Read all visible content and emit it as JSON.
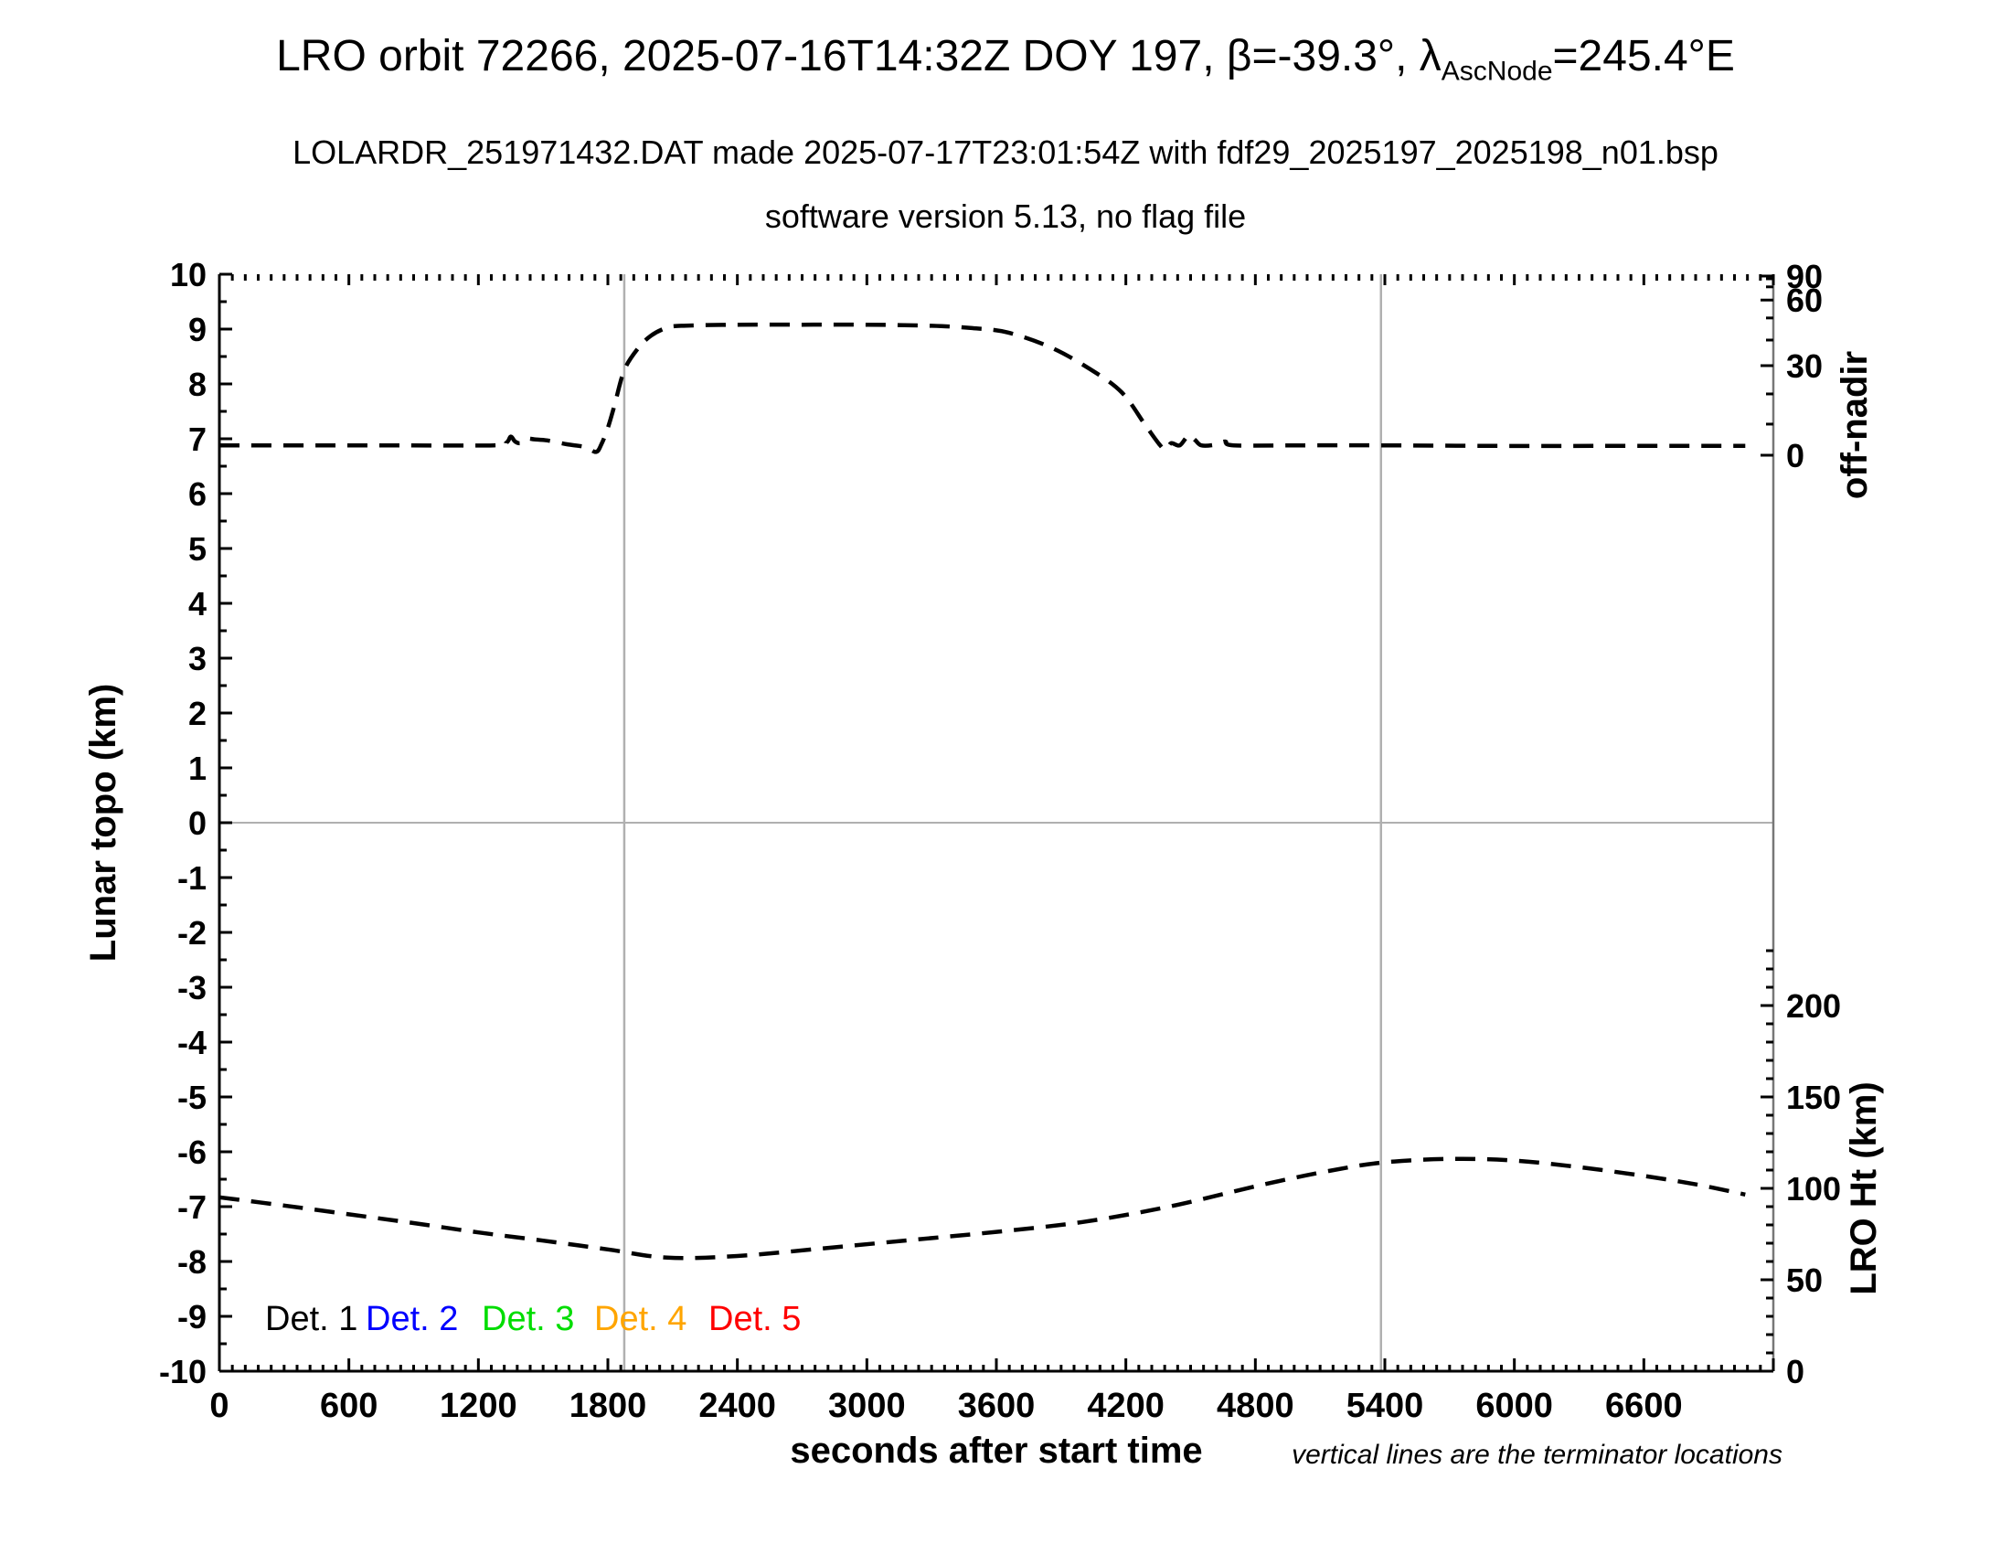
{
  "header": {
    "title_prefix": "LRO orbit 72266, 2025-07-16T14:32Z DOY 197, β=-39.3°, λ",
    "title_subscript": "AscNode",
    "title_suffix": "=245.4°E",
    "subtitle": "LOLARDR_251971432.DAT made 2025-07-17T23:01:54Z with fdf29_2025197_2025198_n01.bsp",
    "software_line": "software version 5.13, no flag file"
  },
  "footnote": "vertical lines are the terminator locations",
  "legend": {
    "items": [
      {
        "label": "Det. 1",
        "color": "#000000"
      },
      {
        "label": "Det. 2",
        "color": "#0000ff"
      },
      {
        "label": "Det. 3",
        "color": "#00dd00"
      },
      {
        "label": "Det. 4",
        "color": "#ffa500"
      },
      {
        "label": "Det. 5",
        "color": "#ff0000"
      }
    ]
  },
  "colors": {
    "curve": "#000000",
    "reference_gray": "#b0b0b0",
    "axis_black": "#000000",
    "axis_right_gray": "#777777"
  },
  "chart_data": {
    "type": "line",
    "title": "LRO orbit 72266, 2025-07-16T14:32Z DOY 197, beta=-39.3 deg, lambda_AscNode=245.4E",
    "x_axis": {
      "label": "seconds after start time",
      "min": 0,
      "max": 7200,
      "major_tick": 600,
      "minor_tick": 60,
      "last_labeled_tick": 6600
    },
    "y_left": {
      "label": "Lunar topo (km)",
      "min": -10,
      "max": 10,
      "major_tick": 1,
      "minor_tick": 0.5
    },
    "y_right_top": {
      "label": "off-nadir",
      "labeled_ticks": [
        0,
        30,
        60,
        90
      ],
      "minor_tick_deg": 10,
      "scale": "sine",
      "zero_at_left_units": 6.7,
      "amplitude_left_units": 3.267
    },
    "y_right_bottom": {
      "label": "LRO Ht (km)",
      "labeled_ticks": [
        0,
        50,
        100,
        150,
        200
      ],
      "minor_tick_km": 10,
      "max_tick_km": 230,
      "km_per_left_unit": 30,
      "zero_at_left_units": -10
    },
    "terminator_lines_s": [
      1876,
      5382
    ],
    "zero_reference_line_left_units": 0,
    "grid": "off",
    "legend_position": "inside-bottom-left",
    "series": [
      {
        "name": "off-nadir angle profile",
        "color": "#000000",
        "style": "dashed",
        "units": "left-axis km equivalents",
        "points": [
          [
            0,
            6.88
          ],
          [
            400,
            6.88
          ],
          [
            800,
            6.88
          ],
          [
            1270,
            6.88
          ],
          [
            1330,
            6.93
          ],
          [
            1350,
            7.04
          ],
          [
            1370,
            6.95
          ],
          [
            1395,
            6.92
          ],
          [
            1425,
            7.0
          ],
          [
            1460,
            6.99
          ],
          [
            1520,
            6.97
          ],
          [
            1610,
            6.9
          ],
          [
            1695,
            6.85
          ],
          [
            1745,
            6.76
          ],
          [
            1770,
            6.9
          ],
          [
            1800,
            7.2
          ],
          [
            1830,
            7.6
          ],
          [
            1876,
            8.25
          ],
          [
            1940,
            8.65
          ],
          [
            2000,
            8.88
          ],
          [
            2070,
            9.02
          ],
          [
            2140,
            9.06
          ],
          [
            2400,
            9.08
          ],
          [
            2700,
            9.08
          ],
          [
            3000,
            9.08
          ],
          [
            3300,
            9.06
          ],
          [
            3480,
            9.02
          ],
          [
            3650,
            8.94
          ],
          [
            3850,
            8.67
          ],
          [
            4030,
            8.28
          ],
          [
            4180,
            7.85
          ],
          [
            4290,
            7.25
          ],
          [
            4355,
            6.9
          ],
          [
            4385,
            6.8
          ],
          [
            4410,
            6.92
          ],
          [
            4450,
            6.88
          ],
          [
            4490,
            7.06
          ],
          [
            4520,
            6.98
          ],
          [
            4550,
            6.88
          ],
          [
            4610,
            6.89
          ],
          [
            4660,
            6.95
          ],
          [
            4700,
            6.88
          ],
          [
            5000,
            6.88
          ],
          [
            5400,
            6.88
          ],
          [
            5900,
            6.87
          ],
          [
            6400,
            6.87
          ],
          [
            6900,
            6.87
          ],
          [
            7070,
            6.87
          ]
        ]
      },
      {
        "name": "LRO height profile",
        "color": "#000000",
        "style": "dashed",
        "units": "left-axis km equivalents",
        "points": [
          [
            0,
            -6.83
          ],
          [
            300,
            -6.98
          ],
          [
            600,
            -7.14
          ],
          [
            900,
            -7.3
          ],
          [
            1200,
            -7.47
          ],
          [
            1500,
            -7.62
          ],
          [
            1800,
            -7.78
          ],
          [
            2075,
            -7.93
          ],
          [
            2400,
            -7.9
          ],
          [
            2800,
            -7.76
          ],
          [
            3200,
            -7.61
          ],
          [
            3600,
            -7.46
          ],
          [
            4000,
            -7.28
          ],
          [
            4400,
            -7.0
          ],
          [
            4800,
            -6.63
          ],
          [
            5100,
            -6.38
          ],
          [
            5380,
            -6.2
          ],
          [
            5700,
            -6.13
          ],
          [
            6000,
            -6.16
          ],
          [
            6300,
            -6.28
          ],
          [
            6600,
            -6.44
          ],
          [
            6850,
            -6.6
          ],
          [
            7070,
            -6.78
          ]
        ]
      }
    ]
  }
}
